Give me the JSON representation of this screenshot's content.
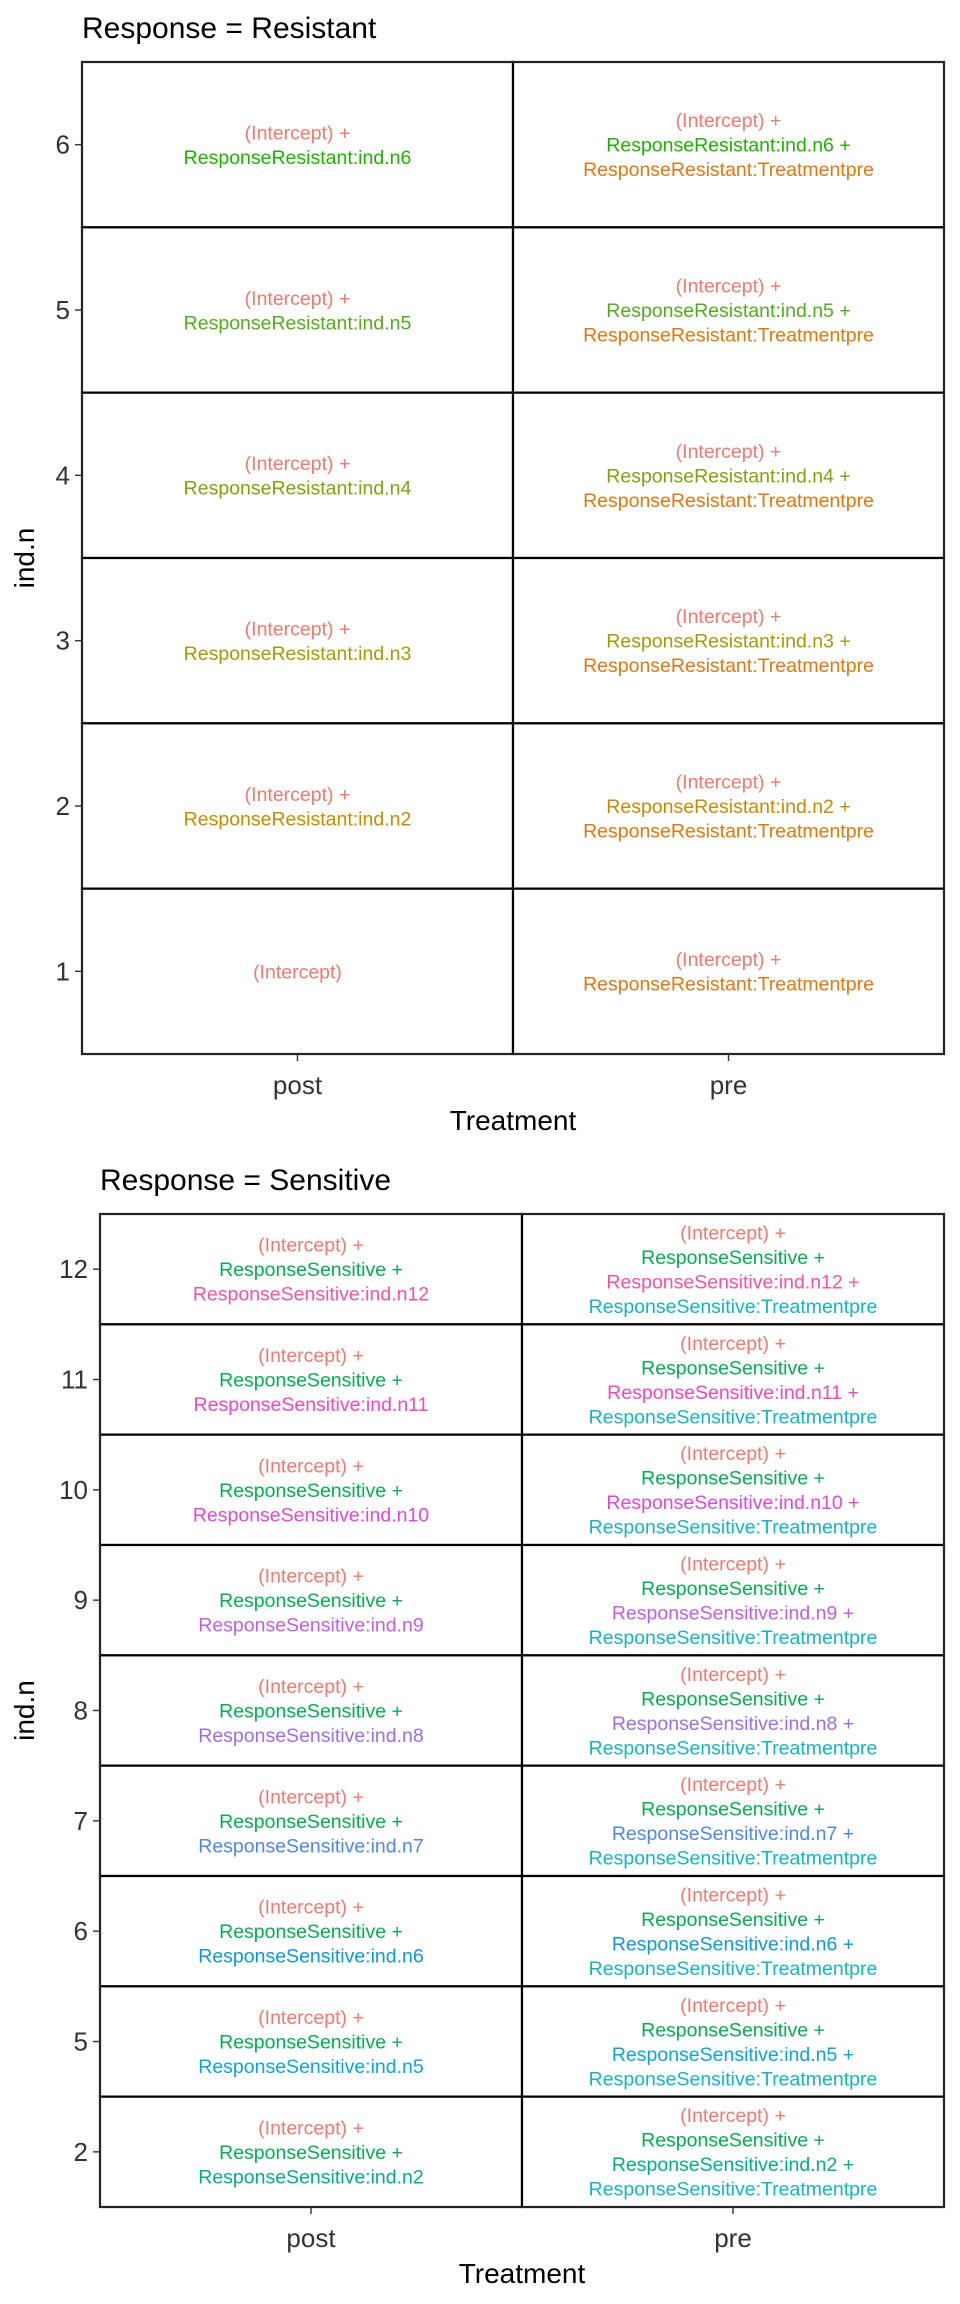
{
  "chart_data": [
    {
      "type": "table",
      "title": "Response = Resistant",
      "xlabel": "Treatment",
      "ylabel": "ind.n",
      "x_categories": [
        "post",
        "pre"
      ],
      "y_categories": [
        "1",
        "2",
        "3",
        "4",
        "5",
        "6"
      ],
      "grid": false,
      "cells": [
        {
          "x": "post",
          "y": "6",
          "lines": [
            {
              "text": "(Intercept) +",
              "color": "#F8766D"
            },
            {
              "text": "ResponseResistant:ind.n6",
              "color": "#1DB300"
            }
          ]
        },
        {
          "x": "pre",
          "y": "6",
          "lines": [
            {
              "text": "(Intercept) +",
              "color": "#F8766D"
            },
            {
              "text": "ResponseResistant:ind.n6 +",
              "color": "#1DB300"
            },
            {
              "text": "ResponseResistant:Treatmentpre",
              "color": "#E6750E"
            }
          ]
        },
        {
          "x": "post",
          "y": "5",
          "lines": [
            {
              "text": "(Intercept) +",
              "color": "#F8766D"
            },
            {
              "text": "ResponseResistant:ind.n5",
              "color": "#53AC1B"
            }
          ]
        },
        {
          "x": "pre",
          "y": "5",
          "lines": [
            {
              "text": "(Intercept) +",
              "color": "#F8766D"
            },
            {
              "text": "ResponseResistant:ind.n5 +",
              "color": "#53AC1B"
            },
            {
              "text": "ResponseResistant:Treatmentpre",
              "color": "#E6750E"
            }
          ]
        },
        {
          "x": "post",
          "y": "4",
          "lines": [
            {
              "text": "(Intercept) +",
              "color": "#F8766D"
            },
            {
              "text": "ResponseResistant:ind.n4",
              "color": "#7FA30F"
            }
          ]
        },
        {
          "x": "pre",
          "y": "4",
          "lines": [
            {
              "text": "(Intercept) +",
              "color": "#F8766D"
            },
            {
              "text": "ResponseResistant:ind.n4 +",
              "color": "#7FA30F"
            },
            {
              "text": "ResponseResistant:Treatmentpre",
              "color": "#E6750E"
            }
          ]
        },
        {
          "x": "post",
          "y": "3",
          "lines": [
            {
              "text": "(Intercept) +",
              "color": "#F8766D"
            },
            {
              "text": "ResponseResistant:ind.n3",
              "color": "#A59A08"
            }
          ]
        },
        {
          "x": "pre",
          "y": "3",
          "lines": [
            {
              "text": "(Intercept) +",
              "color": "#F8766D"
            },
            {
              "text": "ResponseResistant:ind.n3 +",
              "color": "#A59A08"
            },
            {
              "text": "ResponseResistant:Treatmentpre",
              "color": "#E6750E"
            }
          ]
        },
        {
          "x": "post",
          "y": "2",
          "lines": [
            {
              "text": "(Intercept) +",
              "color": "#F8766D"
            },
            {
              "text": "ResponseResistant:ind.n2",
              "color": "#C88B00"
            }
          ]
        },
        {
          "x": "pre",
          "y": "2",
          "lines": [
            {
              "text": "(Intercept) +",
              "color": "#F8766D"
            },
            {
              "text": "ResponseResistant:ind.n2 +",
              "color": "#C88B00"
            },
            {
              "text": "ResponseResistant:Treatmentpre",
              "color": "#E6750E"
            }
          ]
        },
        {
          "x": "post",
          "y": "1",
          "lines": [
            {
              "text": "(Intercept)",
              "color": "#F8766D"
            }
          ]
        },
        {
          "x": "pre",
          "y": "1",
          "lines": [
            {
              "text": "(Intercept) +",
              "color": "#F8766D"
            },
            {
              "text": "ResponseResistant:Treatmentpre",
              "color": "#E6750E"
            }
          ]
        }
      ]
    },
    {
      "type": "table",
      "title": "Response = Sensitive",
      "xlabel": "Treatment",
      "ylabel": "ind.n",
      "x_categories": [
        "post",
        "pre"
      ],
      "y_categories": [
        "2",
        "5",
        "6",
        "7",
        "8",
        "9",
        "10",
        "11",
        "12"
      ],
      "grid": false,
      "cells": [
        {
          "x": "post",
          "y": "12",
          "lines": [
            {
              "text": "(Intercept) +",
              "color": "#F8766D"
            },
            {
              "text": "ResponseSensitive +",
              "color": "#00B050"
            },
            {
              "text": "ResponseSensitive:ind.n12",
              "color": "#FF4FA0"
            }
          ]
        },
        {
          "x": "pre",
          "y": "12",
          "lines": [
            {
              "text": "(Intercept) +",
              "color": "#F8766D"
            },
            {
              "text": "ResponseSensitive +",
              "color": "#00B050"
            },
            {
              "text": "ResponseSensitive:ind.n12 +",
              "color": "#FF4FA0"
            },
            {
              "text": "ResponseSensitive:Treatmentpre",
              "color": "#12B6C2"
            }
          ]
        },
        {
          "x": "post",
          "y": "11",
          "lines": [
            {
              "text": "(Intercept) +",
              "color": "#F8766D"
            },
            {
              "text": "ResponseSensitive +",
              "color": "#00B050"
            },
            {
              "text": "ResponseSensitive:ind.n11",
              "color": "#FC42C0"
            }
          ]
        },
        {
          "x": "pre",
          "y": "11",
          "lines": [
            {
              "text": "(Intercept) +",
              "color": "#F8766D"
            },
            {
              "text": "ResponseSensitive +",
              "color": "#00B050"
            },
            {
              "text": "ResponseSensitive:ind.n11 +",
              "color": "#FC42C0"
            },
            {
              "text": "ResponseSensitive:Treatmentpre",
              "color": "#12B6C2"
            }
          ]
        },
        {
          "x": "post",
          "y": "10",
          "lines": [
            {
              "text": "(Intercept) +",
              "color": "#F8766D"
            },
            {
              "text": "ResponseSensitive +",
              "color": "#00B050"
            },
            {
              "text": "ResponseSensitive:ind.n10",
              "color": "#E445DB"
            }
          ]
        },
        {
          "x": "pre",
          "y": "10",
          "lines": [
            {
              "text": "(Intercept) +",
              "color": "#F8766D"
            },
            {
              "text": "ResponseSensitive +",
              "color": "#00B050"
            },
            {
              "text": "ResponseSensitive:ind.n10 +",
              "color": "#E445DB"
            },
            {
              "text": "ResponseSensitive:Treatmentpre",
              "color": "#12B6C2"
            }
          ]
        },
        {
          "x": "post",
          "y": "9",
          "lines": [
            {
              "text": "(Intercept) +",
              "color": "#F8766D"
            },
            {
              "text": "ResponseSensitive +",
              "color": "#00B050"
            },
            {
              "text": "ResponseSensitive:ind.n9",
              "color": "#C05CF0"
            }
          ]
        },
        {
          "x": "pre",
          "y": "9",
          "lines": [
            {
              "text": "(Intercept) +",
              "color": "#F8766D"
            },
            {
              "text": "ResponseSensitive +",
              "color": "#00B050"
            },
            {
              "text": "ResponseSensitive:ind.n9 +",
              "color": "#C05CF0"
            },
            {
              "text": "ResponseSensitive:Treatmentpre",
              "color": "#12B6C2"
            }
          ]
        },
        {
          "x": "post",
          "y": "8",
          "lines": [
            {
              "text": "(Intercept) +",
              "color": "#F8766D"
            },
            {
              "text": "ResponseSensitive +",
              "color": "#00B050"
            },
            {
              "text": "ResponseSensitive:ind.n8",
              "color": "#9D6CF2"
            }
          ]
        },
        {
          "x": "pre",
          "y": "8",
          "lines": [
            {
              "text": "(Intercept) +",
              "color": "#F8766D"
            },
            {
              "text": "ResponseSensitive +",
              "color": "#00B050"
            },
            {
              "text": "ResponseSensitive:ind.n8 +",
              "color": "#9D6CF2"
            },
            {
              "text": "ResponseSensitive:Treatmentpre",
              "color": "#12B6C2"
            }
          ]
        },
        {
          "x": "post",
          "y": "7",
          "lines": [
            {
              "text": "(Intercept) +",
              "color": "#F8766D"
            },
            {
              "text": "ResponseSensitive +",
              "color": "#00B050"
            },
            {
              "text": "ResponseSensitive:ind.n7",
              "color": "#4F86F0"
            }
          ]
        },
        {
          "x": "pre",
          "y": "7",
          "lines": [
            {
              "text": "(Intercept) +",
              "color": "#F8766D"
            },
            {
              "text": "ResponseSensitive +",
              "color": "#00B050"
            },
            {
              "text": "ResponseSensitive:ind.n7 +",
              "color": "#4F86F0"
            },
            {
              "text": "ResponseSensitive:Treatmentpre",
              "color": "#12B6C2"
            }
          ]
        },
        {
          "x": "post",
          "y": "6",
          "lines": [
            {
              "text": "(Intercept) +",
              "color": "#F8766D"
            },
            {
              "text": "ResponseSensitive +",
              "color": "#00B050"
            },
            {
              "text": "ResponseSensitive:ind.n6",
              "color": "#0A98E0"
            }
          ]
        },
        {
          "x": "pre",
          "y": "6",
          "lines": [
            {
              "text": "(Intercept) +",
              "color": "#F8766D"
            },
            {
              "text": "ResponseSensitive +",
              "color": "#00B050"
            },
            {
              "text": "ResponseSensitive:ind.n6 +",
              "color": "#0A98E0"
            },
            {
              "text": "ResponseSensitive:Treatmentpre",
              "color": "#12B6C2"
            }
          ]
        },
        {
          "x": "post",
          "y": "5",
          "lines": [
            {
              "text": "(Intercept) +",
              "color": "#F8766D"
            },
            {
              "text": "ResponseSensitive +",
              "color": "#00B050"
            },
            {
              "text": "ResponseSensitive:ind.n5",
              "color": "#0AA6D8"
            }
          ]
        },
        {
          "x": "pre",
          "y": "5",
          "lines": [
            {
              "text": "(Intercept) +",
              "color": "#F8766D"
            },
            {
              "text": "ResponseSensitive +",
              "color": "#00B050"
            },
            {
              "text": "ResponseSensitive:ind.n5 +",
              "color": "#0AA6D8"
            },
            {
              "text": "ResponseSensitive:Treatmentpre",
              "color": "#12B6C2"
            }
          ]
        },
        {
          "x": "post",
          "y": "2",
          "lines": [
            {
              "text": "(Intercept) +",
              "color": "#F8766D"
            },
            {
              "text": "ResponseSensitive +",
              "color": "#00B050"
            },
            {
              "text": "ResponseSensitive:ind.n2",
              "color": "#00AE86"
            }
          ]
        },
        {
          "x": "pre",
          "y": "2",
          "lines": [
            {
              "text": "(Intercept) +",
              "color": "#F8766D"
            },
            {
              "text": "ResponseSensitive +",
              "color": "#00B050"
            },
            {
              "text": "ResponseSensitive:ind.n2 +",
              "color": "#00AE86"
            },
            {
              "text": "ResponseSensitive:Treatmentpre",
              "color": "#12B6C2"
            }
          ]
        }
      ]
    }
  ]
}
